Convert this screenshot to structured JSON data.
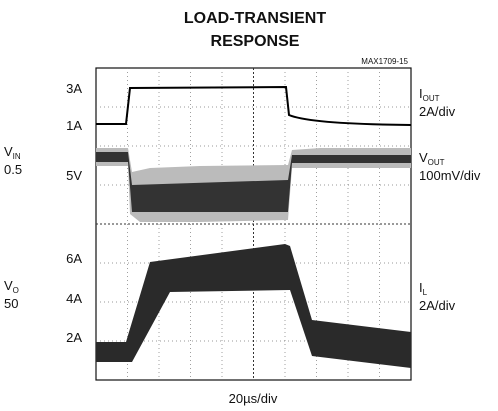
{
  "title": [
    "LOAD-TRANSIENT",
    "RESPONSE"
  ],
  "figure_id": "MAX1709-15",
  "left_labels": [
    "3A",
    "1A",
    "5V",
    "6A",
    "4A",
    "2A"
  ],
  "clipped_left": [
    {
      "main": "V",
      "sub": "IN",
      "line2": "0.5"
    },
    {
      "main": "V",
      "sub": "O",
      "line2": "50"
    }
  ],
  "right_labels": [
    {
      "main": "I",
      "sub": "OUT",
      "scale": "2A/div"
    },
    {
      "main": "V",
      "sub": "OUT",
      "scale": "100mV/div"
    },
    {
      "main": "I",
      "sub": "L",
      "scale": "2A/div"
    }
  ],
  "time_scale": "20µs/div"
}
